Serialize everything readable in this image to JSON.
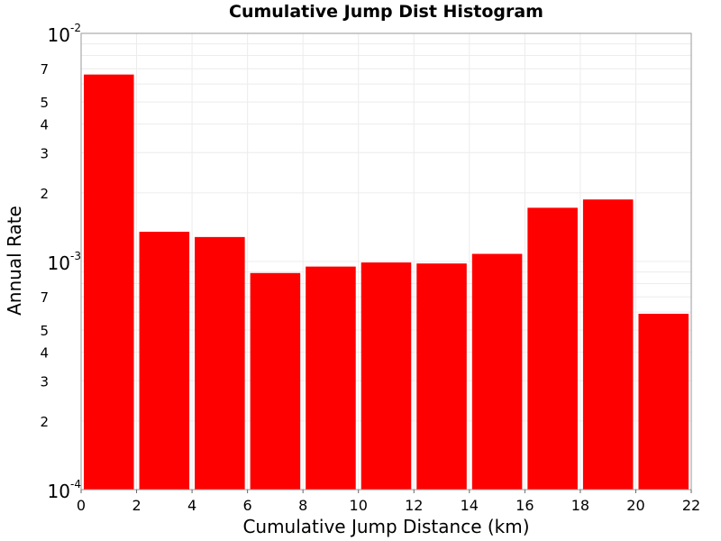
{
  "chart_data": {
    "type": "bar",
    "title": "Cumulative Jump Dist Histogram",
    "xlabel": "Cumulative Jump Distance (km)",
    "ylabel": "Annual Rate",
    "xlim": [
      0,
      22
    ],
    "ylim": [
      0.0001,
      0.01
    ],
    "y_scale": "log",
    "grid": true,
    "bar_color": "#ff0000",
    "bin_width": 2,
    "x": [
      1,
      3,
      5,
      7,
      9,
      11,
      13,
      15,
      17,
      19,
      21
    ],
    "values": [
      0.0066,
      0.00135,
      0.00128,
      0.00089,
      0.00095,
      0.00099,
      0.00098,
      0.00108,
      0.00172,
      0.00187,
      0.00059
    ],
    "x_ticks": [
      "0",
      "2",
      "4",
      "6",
      "8",
      "10",
      "12",
      "14",
      "16",
      "18",
      "20",
      "22"
    ],
    "y_major_ticks": [
      {
        "value": 0.0001,
        "base": "10",
        "exp": "-4"
      },
      {
        "value": 0.001,
        "base": "10",
        "exp": "-3"
      },
      {
        "value": 0.01,
        "base": "10",
        "exp": "-2"
      }
    ],
    "y_minor_ticks": [
      {
        "value": 0.0002,
        "label": "2"
      },
      {
        "value": 0.0003,
        "label": "3"
      },
      {
        "value": 0.0004,
        "label": "4"
      },
      {
        "value": 0.0005,
        "label": "5"
      },
      {
        "value": 0.0007,
        "label": "7"
      },
      {
        "value": 0.002,
        "label": "2"
      },
      {
        "value": 0.003,
        "label": "3"
      },
      {
        "value": 0.004,
        "label": "4"
      },
      {
        "value": 0.005,
        "label": "5"
      },
      {
        "value": 0.007,
        "label": "7"
      }
    ]
  }
}
